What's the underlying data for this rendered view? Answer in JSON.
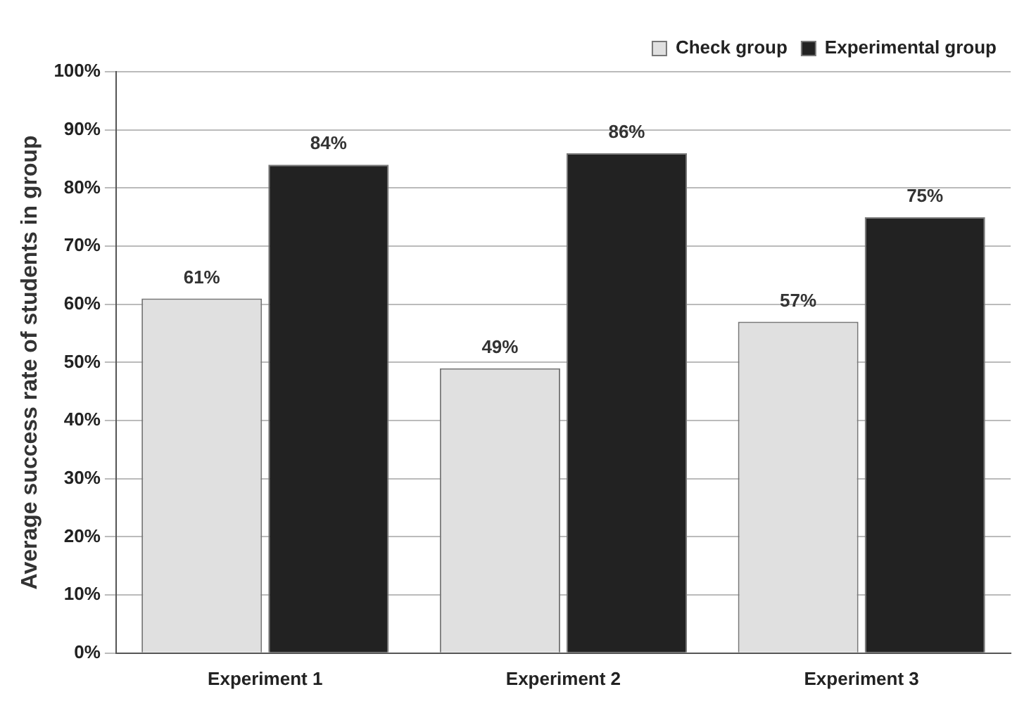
{
  "chart_data": {
    "type": "bar",
    "ylabel": "Average success rate of students in group",
    "categories": [
      "Experiment 1",
      "Experiment 2",
      "Experiment 3"
    ],
    "series": [
      {
        "name": "Check group",
        "color": "#e0e0e0",
        "values": [
          61,
          49,
          57
        ],
        "value_labels": [
          "61%",
          "49%",
          "57%"
        ]
      },
      {
        "name": "Experimental group",
        "color": "#222222",
        "values": [
          84,
          86,
          75
        ],
        "value_labels": [
          "84%",
          "86%",
          "75%"
        ]
      }
    ],
    "ylim": [
      0,
      100
    ],
    "yticks": [
      {
        "value": 0,
        "label": "0%"
      },
      {
        "value": 10,
        "label": "10%"
      },
      {
        "value": 20,
        "label": "20%"
      },
      {
        "value": 30,
        "label": "30%"
      },
      {
        "value": 40,
        "label": "40%"
      },
      {
        "value": 50,
        "label": "50%"
      },
      {
        "value": 60,
        "label": "60%"
      },
      {
        "value": 70,
        "label": "70%"
      },
      {
        "value": 80,
        "label": "80%"
      },
      {
        "value": 90,
        "label": "90%"
      },
      {
        "value": 100,
        "label": "100%"
      }
    ],
    "grid": "y",
    "legend": "top right"
  }
}
